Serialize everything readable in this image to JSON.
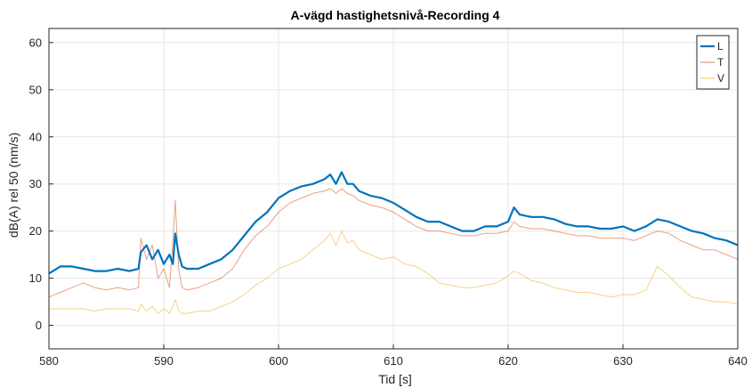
{
  "chart_data": {
    "type": "line",
    "title": "A-vägd hastighetsnivå-Recording 4",
    "xlabel": "Tid [s]",
    "ylabel": "dB(A) rel 50 (nm/s)",
    "xlim": [
      580,
      640
    ],
    "ylim": [
      -5,
      63
    ],
    "xticks": [
      "580",
      "590",
      "600",
      "610",
      "620",
      "630",
      "640"
    ],
    "yticks": [
      "0",
      "10",
      "20",
      "30",
      "40",
      "50",
      "60"
    ],
    "grid": true,
    "legend_position": "top-right",
    "series": [
      {
        "name": "L",
        "color": "#0072BD",
        "x": [
          580,
          581,
          582,
          583,
          584,
          585,
          586,
          587,
          587.8,
          588,
          588.5,
          589,
          589.5,
          590,
          590.5,
          590.8,
          591,
          591.3,
          591.6,
          592,
          593,
          594,
          595,
          596,
          597,
          598,
          599,
          600,
          601,
          602,
          603,
          604,
          604.5,
          605,
          605.5,
          606,
          606.5,
          607,
          608,
          609,
          610,
          611,
          612,
          613,
          614,
          615,
          616,
          617,
          618,
          619,
          620,
          620.5,
          621,
          622,
          623,
          624,
          625,
          626,
          627,
          628,
          629,
          630,
          631,
          632,
          633,
          634,
          635,
          636,
          637,
          638,
          639,
          640
        ],
        "y": [
          11,
          12.5,
          12.5,
          12,
          11.5,
          11.5,
          12,
          11.5,
          12,
          15.5,
          17,
          14,
          16,
          13,
          15,
          13,
          19.5,
          15,
          12.5,
          12,
          12,
          13,
          14,
          16,
          19,
          22,
          24,
          27,
          28.5,
          29.5,
          30,
          31,
          32,
          30,
          32.5,
          30,
          30,
          28.5,
          27.5,
          27,
          26,
          24.5,
          23,
          22,
          22,
          21,
          20,
          20,
          21,
          21,
          22,
          25,
          23.5,
          23,
          23,
          22.5,
          21.5,
          21,
          21,
          20.5,
          20.5,
          21,
          20,
          21,
          22.5,
          22,
          21,
          20,
          19.5,
          18.5,
          18,
          17
        ]
      },
      {
        "name": "T",
        "color": "#D95319",
        "x": [
          580,
          581,
          582,
          583,
          584,
          585,
          586,
          587,
          587.8,
          588,
          588.5,
          589,
          589.5,
          590,
          590.5,
          590.8,
          591,
          591.3,
          591.6,
          592,
          593,
          594,
          595,
          596,
          597,
          598,
          599,
          600,
          601,
          602,
          603,
          604,
          604.5,
          605,
          605.5,
          606,
          606.5,
          607,
          608,
          609,
          610,
          611,
          612,
          613,
          614,
          615,
          616,
          617,
          618,
          619,
          620,
          620.5,
          621,
          622,
          623,
          624,
          625,
          626,
          627,
          628,
          629,
          630,
          631,
          632,
          633,
          634,
          635,
          636,
          637,
          638,
          639,
          640
        ],
        "y": [
          6,
          7,
          8,
          9,
          8,
          7.5,
          8,
          7.5,
          8,
          18.5,
          14,
          17,
          10,
          12,
          8,
          18,
          26.5,
          12,
          8,
          7.5,
          8,
          9,
          10,
          12,
          16,
          19,
          21,
          24,
          26,
          27,
          28,
          28.5,
          29,
          28,
          29,
          28,
          27.5,
          26.5,
          25.5,
          25,
          24,
          22.5,
          21,
          20,
          20,
          19.5,
          19,
          19,
          19.5,
          19.5,
          20,
          22,
          21,
          20.5,
          20.5,
          20,
          19.5,
          19,
          19,
          18.5,
          18.5,
          18.5,
          18,
          19,
          20,
          19.5,
          18,
          17,
          16,
          16,
          15,
          14
        ]
      },
      {
        "name": "V",
        "color": "#EDB120",
        "x": [
          580,
          581,
          582,
          583,
          584,
          585,
          586,
          587,
          587.8,
          588,
          588.5,
          589,
          589.5,
          590,
          590.5,
          590.8,
          591,
          591.3,
          591.6,
          592,
          593,
          594,
          595,
          596,
          597,
          598,
          599,
          600,
          601,
          602,
          603,
          604,
          604.5,
          605,
          605.5,
          606,
          606.5,
          607,
          608,
          609,
          610,
          611,
          612,
          613,
          614,
          615,
          616,
          617,
          618,
          619,
          620,
          620.5,
          621,
          622,
          623,
          624,
          625,
          626,
          627,
          628,
          629,
          630,
          631,
          632,
          633,
          634,
          635,
          636,
          637,
          638,
          639,
          640
        ],
        "y": [
          3.5,
          3.5,
          3.5,
          3.5,
          3,
          3.5,
          3.5,
          3.5,
          3,
          4.5,
          3,
          4,
          2.5,
          3.5,
          2.5,
          4,
          5.5,
          3,
          2.5,
          2.5,
          3,
          3,
          4,
          5,
          6.5,
          8.5,
          10,
          12,
          13,
          14,
          16,
          18,
          19.5,
          17,
          20,
          17.5,
          18,
          16,
          15,
          14,
          14.5,
          13,
          12.5,
          11,
          9,
          8.5,
          8,
          8,
          8.5,
          9,
          10.5,
          11.5,
          11,
          9.5,
          9,
          8,
          7.5,
          7,
          7,
          6.5,
          6,
          6.5,
          6.5,
          7.5,
          12.5,
          10.5,
          8,
          6,
          5.5,
          5,
          5,
          4.5
        ]
      }
    ]
  }
}
